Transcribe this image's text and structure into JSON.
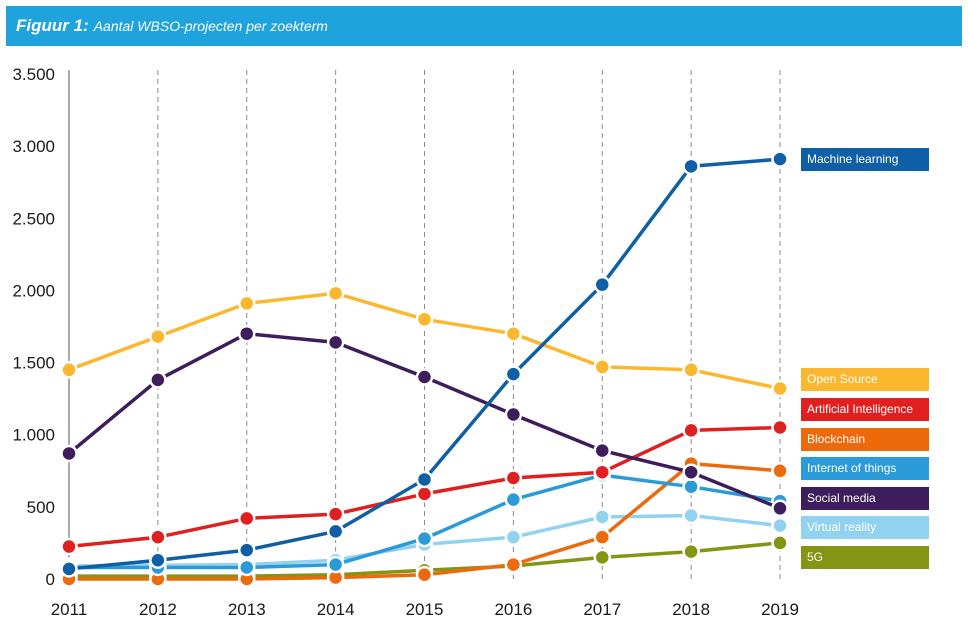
{
  "header": {
    "title_bold": "Figuur 1:",
    "title_rest": "Aantal WBSO-projecten per zoekterm"
  },
  "chart_data": {
    "type": "line",
    "title": "Figuur 1: Aantal WBSO-projecten per zoekterm",
    "xlabel": "",
    "ylabel": "",
    "x": [
      "2011",
      "2012",
      "2013",
      "2014",
      "2015",
      "2016",
      "2017",
      "2018",
      "2019"
    ],
    "ylim": [
      0,
      3500
    ],
    "yticks": [
      0,
      500,
      1000,
      1500,
      2000,
      2500,
      3000,
      3500
    ],
    "ytick_labels": [
      "0",
      "500",
      "1.000",
      "1.500",
      "2.000",
      "2.500",
      "3.000",
      "3.500"
    ],
    "vertical_gridlines": "dashed",
    "legend_placement": "right",
    "series": [
      {
        "name": "Machine learning",
        "color": "#0e5fa5",
        "values": [
          70,
          130,
          200,
          330,
          690,
          1420,
          2040,
          2860,
          2910
        ]
      },
      {
        "name": "Open Source",
        "color": "#fbb72d",
        "values": [
          1450,
          1680,
          1910,
          1980,
          1800,
          1700,
          1470,
          1450,
          1320
        ]
      },
      {
        "name": "Artificial Intelligence",
        "color": "#e02020",
        "values": [
          225,
          290,
          420,
          450,
          590,
          700,
          740,
          1030,
          1050
        ]
      },
      {
        "name": "Blockchain",
        "color": "#ec6a0c",
        "values": [
          0,
          0,
          0,
          10,
          30,
          100,
          290,
          800,
          750
        ]
      },
      {
        "name": "Internet of things",
        "color": "#2a9ad8",
        "values": [
          80,
          80,
          80,
          100,
          280,
          550,
          720,
          640,
          540
        ]
      },
      {
        "name": "Social media",
        "color": "#3e1d5c",
        "values": [
          870,
          1380,
          1700,
          1640,
          1400,
          1140,
          890,
          740,
          490
        ]
      },
      {
        "name": "Virtual reality",
        "color": "#92d2f1",
        "values": [
          90,
          95,
          100,
          130,
          240,
          290,
          430,
          440,
          370
        ]
      },
      {
        "name": "5G",
        "color": "#849413",
        "values": [
          20,
          20,
          20,
          30,
          60,
          90,
          150,
          190,
          250
        ]
      }
    ]
  },
  "legend": [
    {
      "label": "Machine learning",
      "color": "#0e5fa5"
    },
    {
      "label": "Open Source",
      "color": "#fbb72d"
    },
    {
      "label": "Artificial Intelligence",
      "color": "#e02020"
    },
    {
      "label": "Blockchain",
      "color": "#ec6a0c"
    },
    {
      "label": "Internet of things",
      "color": "#2a9ad8"
    },
    {
      "label": "Social media",
      "color": "#3e1d5c"
    },
    {
      "label": "Virtual reality",
      "color": "#92d2f1"
    },
    {
      "label": "5G",
      "color": "#849413"
    }
  ]
}
